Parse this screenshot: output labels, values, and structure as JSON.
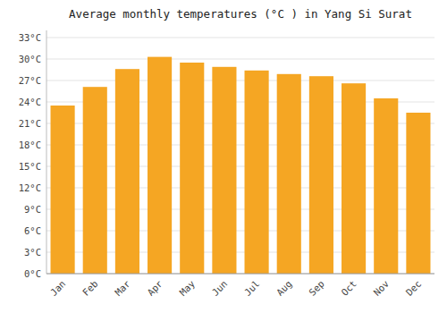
{
  "chart_data": {
    "type": "bar",
    "title": "Average monthly temperatures (°C ) in Yang Si Surat",
    "categories": [
      "Jan",
      "Feb",
      "Mar",
      "Apr",
      "May",
      "Jun",
      "Jul",
      "Aug",
      "Sep",
      "Oct",
      "Nov",
      "Dec"
    ],
    "values": [
      23.5,
      26.1,
      28.6,
      30.3,
      29.5,
      28.9,
      28.4,
      27.9,
      27.6,
      26.6,
      24.5,
      22.5
    ],
    "color": "#F5A623",
    "ylim": [
      0,
      34
    ],
    "yticks": [
      {
        "value": 0,
        "label": "0°C"
      },
      {
        "value": 3,
        "label": "3°C"
      },
      {
        "value": 6,
        "label": "6°C"
      },
      {
        "value": 9,
        "label": "9°C"
      },
      {
        "value": 12,
        "label": "12°C"
      },
      {
        "value": 15,
        "label": "15°C"
      },
      {
        "value": 18,
        "label": "18°C"
      },
      {
        "value": 21,
        "label": "21°C"
      },
      {
        "value": 24,
        "label": "24°C"
      },
      {
        "value": 27,
        "label": "27°C"
      },
      {
        "value": 30,
        "label": "30°C"
      },
      {
        "value": 33,
        "label": "33°C"
      }
    ],
    "grid": true
  }
}
